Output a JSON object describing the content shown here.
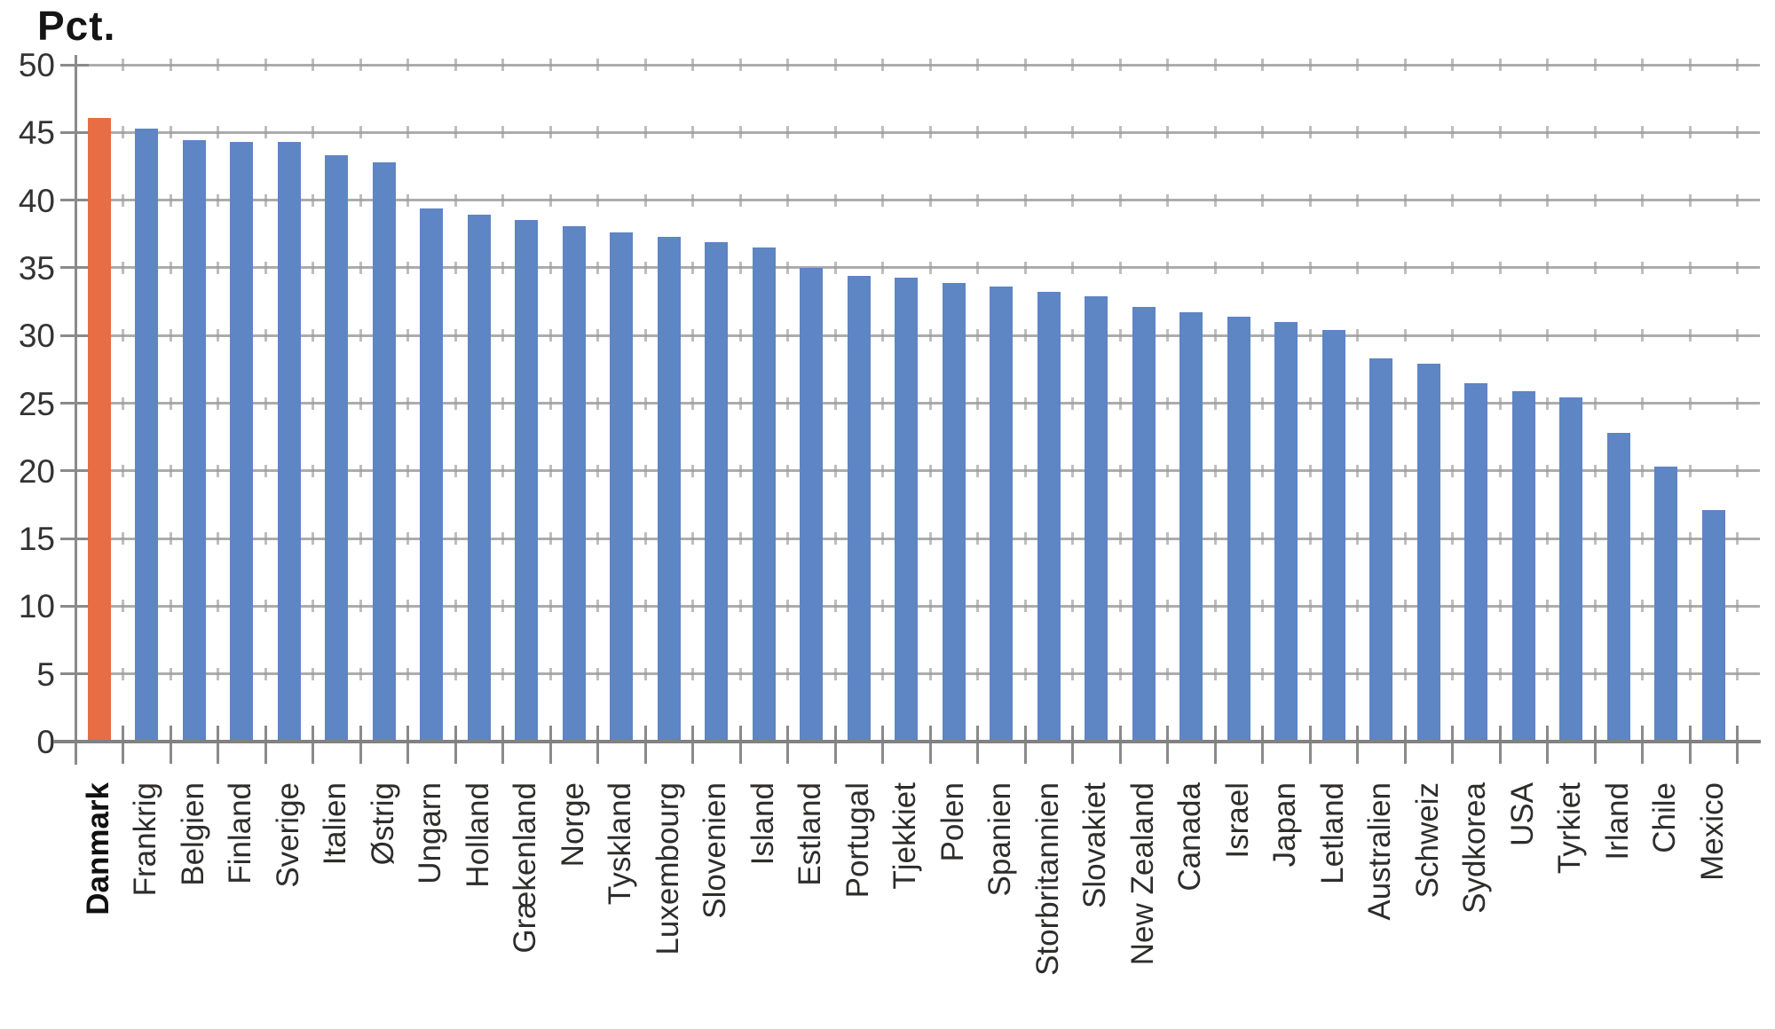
{
  "chart_data": {
    "type": "bar",
    "title": "",
    "ylabel": "Pct.",
    "xlabel": "",
    "ylim": [
      0,
      50
    ],
    "ytick_interval": 5,
    "yticks": [
      0,
      5,
      10,
      15,
      20,
      25,
      30,
      35,
      40,
      45,
      50
    ],
    "grid": "horizontal",
    "legend": "none",
    "categories": [
      "Danmark",
      "Frankrig",
      "Belgien",
      "Finland",
      "Sverige",
      "Italien",
      "Østrig",
      "Ungarn",
      "Holland",
      "Grækenland",
      "Norge",
      "Tyskland",
      "Luxembourg",
      "Slovenien",
      "Island",
      "Estland",
      "Portugal",
      "Tjekkiet",
      "Polen",
      "Spanien",
      "Storbritannien",
      "Slovakiet",
      "New Zealand",
      "Canada",
      "Israel",
      "Japan",
      "Letland",
      "Australien",
      "Schweiz",
      "Sydkorea",
      "USA",
      "Tyrkiet",
      "Irland",
      "Chile",
      "Mexico"
    ],
    "values": [
      46.1,
      45.3,
      44.4,
      44.3,
      44.3,
      43.3,
      42.8,
      39.4,
      38.9,
      38.5,
      38.1,
      37.6,
      37.3,
      36.9,
      36.5,
      35.0,
      34.4,
      34.3,
      33.9,
      33.6,
      33.2,
      32.9,
      32.1,
      31.7,
      31.4,
      31.0,
      30.4,
      28.3,
      27.9,
      26.5,
      25.9,
      25.4,
      22.8,
      20.3,
      17.1
    ],
    "highlight_category": "Danmark",
    "colors": {
      "bar": "#5E85C4",
      "highlight_bar": "#E86C44",
      "gridline": "#ACACAC",
      "axis": "#8A8A8A",
      "text": "#2E2D2C"
    }
  }
}
